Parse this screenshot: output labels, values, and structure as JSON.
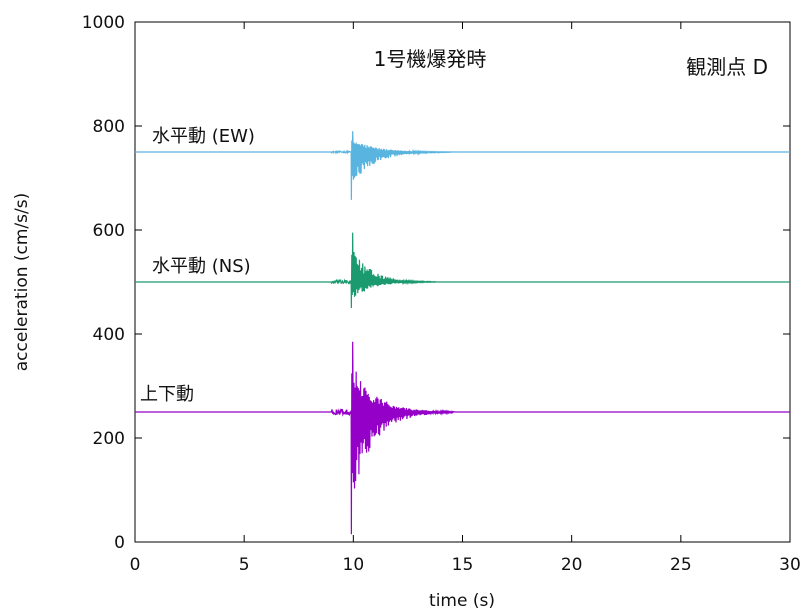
{
  "chart_data": {
    "type": "line",
    "title": "",
    "xlabel": "time (s)",
    "ylabel": "acceleration (cm/s/s)",
    "xlim": [
      0,
      30
    ],
    "ylim": [
      0,
      1000
    ],
    "xticks": [
      "0",
      "5",
      "10",
      "15",
      "20",
      "25",
      "30"
    ],
    "yticks": [
      "0",
      "200",
      "400",
      "600",
      "800",
      "1000"
    ],
    "grid": false,
    "annotations": [
      {
        "id": "event",
        "text": "1号機爆発時"
      },
      {
        "id": "station",
        "text": "観測点 D"
      }
    ],
    "series": [
      {
        "name": "水平動 (EW)",
        "color": "#5ab4e0",
        "baseline": 750,
        "event_time": 9.9,
        "peak_up": 790,
        "peak_down": 658,
        "decay_end": 14.5
      },
      {
        "name": "水平動 (NS)",
        "color": "#1a9a6e",
        "baseline": 500,
        "event_time": 9.9,
        "peak_up": 595,
        "peak_down": 450,
        "decay_end": 13.8
      },
      {
        "name": "上下動",
        "color": "#9400c8",
        "baseline": 250,
        "event_time": 9.9,
        "peak_up": 385,
        "peak_down": 15,
        "decay_end": 14.6
      }
    ]
  }
}
